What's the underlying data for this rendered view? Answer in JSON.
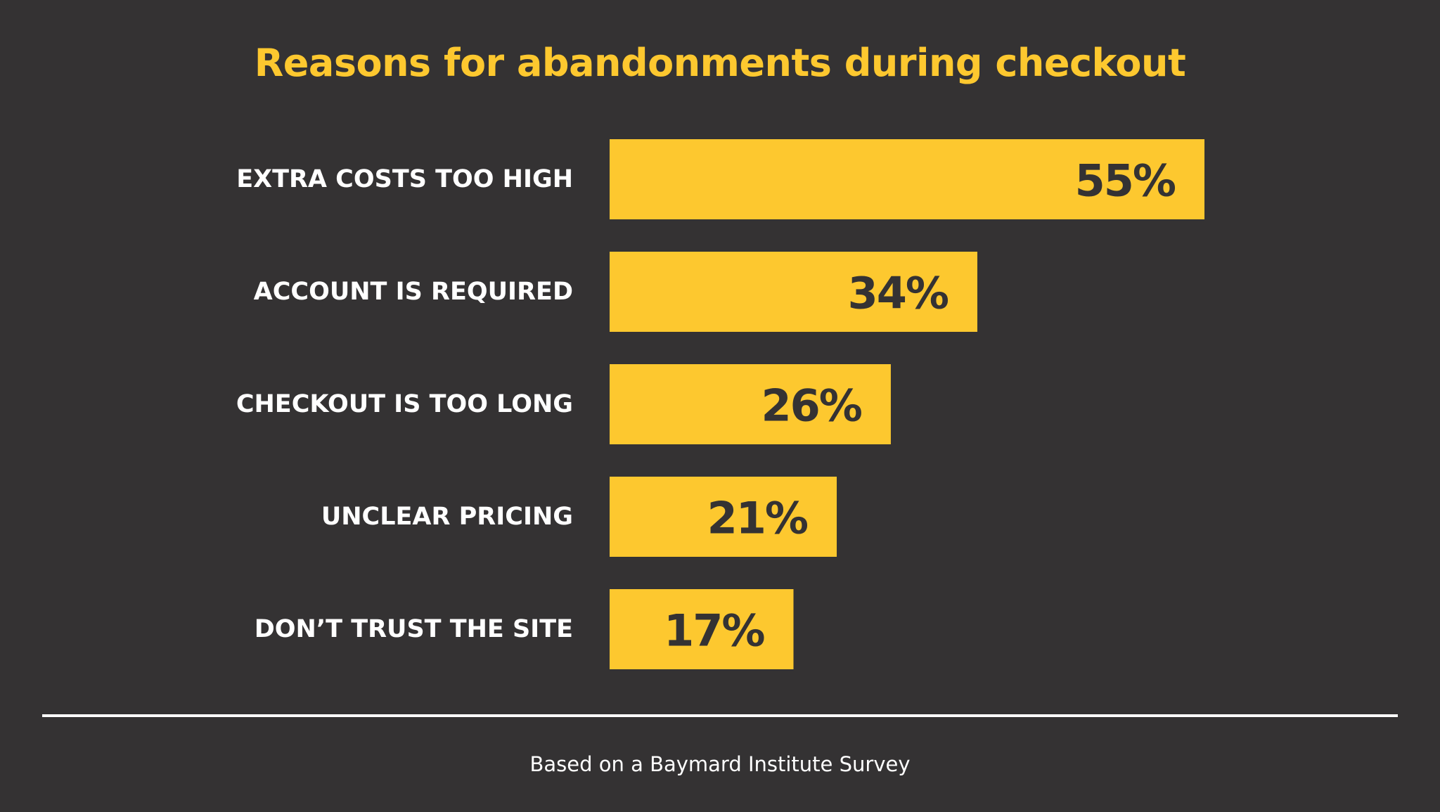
{
  "chart_data": {
    "type": "bar",
    "orientation": "horizontal",
    "title": "Reasons for abandonments during checkout",
    "categories": [
      "EXTRA COSTS TOO HIGH",
      "ACCOUNT IS REQUIRED",
      "CHECKOUT IS TOO LONG",
      "UNCLEAR PRICING",
      "DON’T TRUST THE SITE"
    ],
    "values": [
      55,
      34,
      26,
      21,
      17
    ],
    "value_labels": [
      "55%",
      "34%",
      "26%",
      "21%",
      "17%"
    ],
    "unit": "%",
    "grid": false,
    "legend": "none",
    "bar_color": "#fdc82f",
    "background_color": "#343233",
    "title_color": "#fdc82f",
    "label_color": "#ffffff",
    "value_label_color": "#343233"
  },
  "footer": {
    "note": "Based on a Baymard Institute Survey"
  }
}
